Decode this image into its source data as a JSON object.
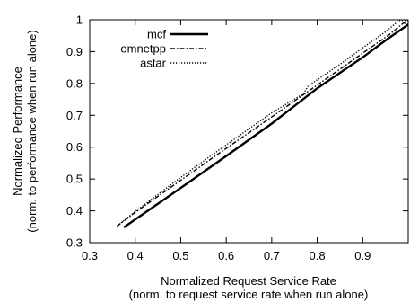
{
  "chart_data": {
    "type": "line",
    "title": "",
    "xlabel": "Normalized Request Service Rate",
    "xlabel_sub": "(norm. to request service rate when run alone)",
    "ylabel": "Normalized Performance",
    "ylabel_sub": "(norm. to performance when run alone)",
    "xlim": [
      0.3,
      1.0
    ],
    "ylim": [
      0.3,
      1.0
    ],
    "xticks": [
      "0.3",
      "0.4",
      "0.5",
      "0.6",
      "0.7",
      "0.8",
      "0.9"
    ],
    "yticks": [
      "0.3",
      "0.4",
      "0.5",
      "0.6",
      "0.7",
      "0.8",
      "0.9",
      "1"
    ],
    "grid": false,
    "legend_position": "top-left",
    "series": [
      {
        "name": "mcf",
        "style": "solid",
        "points": [
          [
            0.375,
            0.348
          ],
          [
            0.5,
            0.472
          ],
          [
            0.6,
            0.572
          ],
          [
            0.7,
            0.674
          ],
          [
            0.8,
            0.785
          ],
          [
            0.9,
            0.882
          ],
          [
            0.95,
            0.935
          ],
          [
            0.98,
            0.965
          ],
          [
            1.0,
            0.985
          ]
        ]
      },
      {
        "name": "omnetpp",
        "style": "dashdot",
        "points": [
          [
            0.36,
            0.352
          ],
          [
            0.4,
            0.395
          ],
          [
            0.5,
            0.496
          ],
          [
            0.6,
            0.596
          ],
          [
            0.7,
            0.695
          ],
          [
            0.78,
            0.775
          ],
          [
            0.8,
            0.795
          ],
          [
            0.9,
            0.895
          ],
          [
            0.96,
            0.955
          ],
          [
            0.99,
            0.99
          ],
          [
            1.0,
            0.985
          ]
        ]
      },
      {
        "name": "astar",
        "style": "dotted",
        "points": [
          [
            0.36,
            0.352
          ],
          [
            0.4,
            0.398
          ],
          [
            0.5,
            0.505
          ],
          [
            0.6,
            0.607
          ],
          [
            0.7,
            0.708
          ],
          [
            0.77,
            0.768
          ],
          [
            0.78,
            0.792
          ],
          [
            0.85,
            0.86
          ],
          [
            0.9,
            0.912
          ],
          [
            0.95,
            0.962
          ],
          [
            0.98,
            0.998
          ],
          [
            1.0,
            0.998
          ]
        ]
      }
    ]
  }
}
